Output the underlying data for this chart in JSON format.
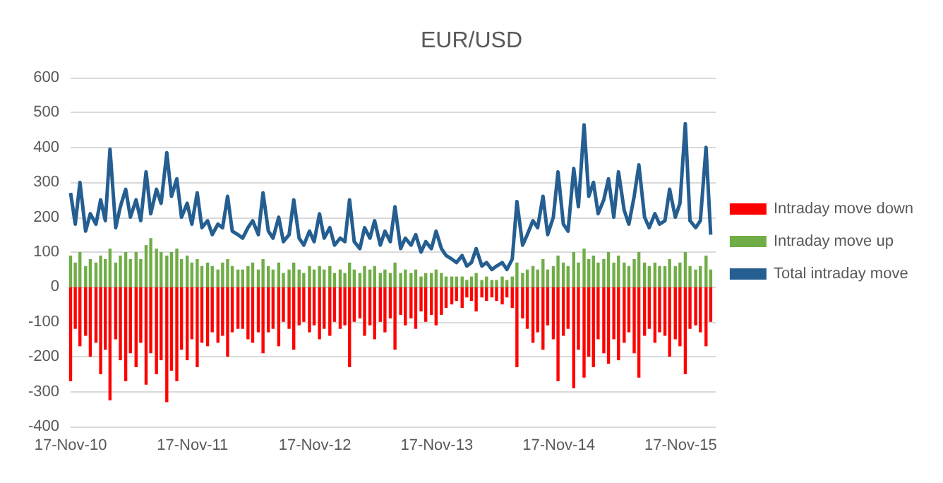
{
  "chart_data": {
    "type": "bar",
    "title": "EUR/USD",
    "stacked": true,
    "legend": "right",
    "grid": "y",
    "marker": "none",
    "x": [
      "2010-11-17",
      "2010-12-01",
      "2010-12-15",
      "2011-01-01",
      "2011-01-15",
      "2011-02-01",
      "2011-02-15",
      "2011-03-01",
      "2011-03-15",
      "2011-04-01",
      "2011-04-15",
      "2011-05-01",
      "2011-05-15",
      "2011-06-01",
      "2011-06-15",
      "2011-07-01",
      "2011-07-15",
      "2011-08-01",
      "2011-08-15",
      "2011-09-01",
      "2011-09-15",
      "2011-10-01",
      "2011-10-15",
      "2011-11-01",
      "2011-11-15",
      "2011-12-01",
      "2011-12-15",
      "2012-01-01",
      "2012-01-15",
      "2012-02-01",
      "2012-02-15",
      "2012-03-01",
      "2012-03-15",
      "2012-04-01",
      "2012-04-15",
      "2012-05-01",
      "2012-05-15",
      "2012-06-01",
      "2012-06-15",
      "2012-07-01",
      "2012-07-15",
      "2012-08-01",
      "2012-08-15",
      "2012-09-01",
      "2012-09-15",
      "2012-10-01",
      "2012-10-15",
      "2012-11-01",
      "2012-11-15",
      "2012-12-01",
      "2012-12-15",
      "2013-01-01",
      "2013-01-15",
      "2013-02-01",
      "2013-02-15",
      "2013-03-01",
      "2013-03-15",
      "2013-04-01",
      "2013-04-15",
      "2013-05-01",
      "2013-05-15",
      "2013-06-01",
      "2013-06-15",
      "2013-07-01",
      "2013-07-15",
      "2013-08-01",
      "2013-08-15",
      "2013-09-01",
      "2013-09-15",
      "2013-10-01",
      "2013-10-15",
      "2013-11-01",
      "2013-11-15",
      "2013-12-01",
      "2013-12-15",
      "2014-01-01",
      "2014-01-15",
      "2014-02-01",
      "2014-02-15",
      "2014-03-01",
      "2014-03-15",
      "2014-04-01",
      "2014-04-15",
      "2014-05-01",
      "2014-05-15",
      "2014-06-01",
      "2014-06-15",
      "2014-07-01",
      "2014-07-15",
      "2014-08-01",
      "2014-08-15",
      "2014-09-01",
      "2014-09-15",
      "2014-10-01",
      "2014-10-15",
      "2014-11-01",
      "2014-11-15",
      "2014-12-01",
      "2014-12-15",
      "2015-01-01",
      "2015-01-15",
      "2015-02-01",
      "2015-02-15",
      "2015-03-01",
      "2015-03-15",
      "2015-04-01",
      "2015-04-15",
      "2015-05-01",
      "2015-05-15",
      "2015-06-01",
      "2015-06-15",
      "2015-07-01",
      "2015-07-15",
      "2015-08-01",
      "2015-08-15",
      "2015-09-01",
      "2015-09-15",
      "2015-10-01",
      "2015-10-15",
      "2015-11-01",
      "2015-11-15",
      "2015-12-01",
      "2015-12-15",
      "2016-01-01",
      "2016-01-15",
      "2016-02-01",
      "2016-02-15"
    ],
    "xlim": [
      "2010-11-17",
      "2016-03-01"
    ],
    "xticks": [
      {
        "value": "2010-11-17",
        "label": "17-Nov-10"
      },
      {
        "value": "2011-11-17",
        "label": "17-Nov-11"
      },
      {
        "value": "2012-11-17",
        "label": "17-Nov-12"
      },
      {
        "value": "2013-11-17",
        "label": "17-Nov-13"
      },
      {
        "value": "2014-11-17",
        "label": "17-Nov-14"
      },
      {
        "value": "2015-11-17",
        "label": "17-Nov-15"
      }
    ],
    "ylim": [
      -400,
      600
    ],
    "yticks": [
      -400,
      -300,
      -200,
      -100,
      0,
      100,
      200,
      300,
      400,
      500,
      600
    ],
    "series": [
      {
        "name": "Intraday move down",
        "color": "#ff0000",
        "values": [
          -270,
          -120,
          -170,
          -140,
          -200,
          -160,
          -250,
          -180,
          -325,
          -150,
          -210,
          -270,
          -190,
          -230,
          -160,
          -280,
          -190,
          -250,
          -210,
          -330,
          -240,
          -270,
          -180,
          -210,
          -150,
          -230,
          -160,
          -170,
          -130,
          -160,
          -140,
          -200,
          -130,
          -120,
          -120,
          -150,
          -160,
          -130,
          -190,
          -130,
          -120,
          -170,
          -100,
          -120,
          -180,
          -110,
          -100,
          -130,
          -110,
          -150,
          -120,
          -140,
          -100,
          -120,
          -110,
          -230,
          -100,
          -90,
          -140,
          -110,
          -150,
          -100,
          -130,
          -90,
          -180,
          -80,
          -110,
          -90,
          -120,
          -70,
          -100,
          -80,
          -110,
          -80,
          -60,
          -50,
          -40,
          -60,
          -30,
          -40,
          -70,
          -30,
          -40,
          -30,
          -40,
          -50,
          -30,
          -60,
          -230,
          -90,
          -120,
          -160,
          -130,
          -180,
          -110,
          -150,
          -270,
          -140,
          -120,
          -290,
          -180,
          -260,
          -200,
          -230,
          -150,
          -190,
          -220,
          -150,
          -210,
          -160,
          -130,
          -190,
          -260,
          -140,
          -120,
          -160,
          -130,
          -140,
          -200,
          -150,
          -170,
          -250,
          -120,
          -110,
          -130,
          -170,
          -100
        ]
      },
      {
        "name": "Intraday move up",
        "color": "#70ad47",
        "values": [
          90,
          70,
          100,
          60,
          80,
          70,
          90,
          80,
          110,
          70,
          90,
          100,
          80,
          100,
          80,
          120,
          140,
          110,
          100,
          90,
          100,
          110,
          80,
          90,
          70,
          80,
          60,
          70,
          60,
          50,
          70,
          80,
          60,
          50,
          50,
          60,
          70,
          50,
          80,
          60,
          50,
          70,
          40,
          50,
          70,
          50,
          40,
          60,
          50,
          60,
          50,
          60,
          40,
          50,
          40,
          70,
          50,
          40,
          60,
          50,
          60,
          40,
          50,
          40,
          70,
          40,
          50,
          40,
          50,
          30,
          40,
          40,
          50,
          40,
          30,
          30,
          30,
          30,
          20,
          30,
          40,
          20,
          30,
          20,
          20,
          30,
          20,
          30,
          70,
          40,
          50,
          60,
          50,
          80,
          50,
          60,
          90,
          70,
          60,
          100,
          70,
          110,
          80,
          90,
          70,
          80,
          100,
          70,
          90,
          70,
          60,
          80,
          100,
          70,
          60,
          70,
          60,
          60,
          80,
          60,
          70,
          100,
          60,
          50,
          60,
          90,
          50
        ]
      },
      {
        "name": "Total intraday move",
        "type": "line",
        "color": "#255e91",
        "values": [
          270,
          180,
          300,
          160,
          210,
          180,
          250,
          190,
          395,
          170,
          230,
          280,
          200,
          250,
          190,
          330,
          210,
          280,
          240,
          385,
          260,
          310,
          200,
          240,
          180,
          270,
          170,
          190,
          150,
          180,
          170,
          260,
          160,
          150,
          140,
          170,
          190,
          150,
          270,
          160,
          140,
          200,
          130,
          150,
          250,
          140,
          120,
          160,
          130,
          210,
          140,
          170,
          120,
          140,
          130,
          250,
          130,
          110,
          170,
          140,
          190,
          120,
          160,
          130,
          230,
          110,
          140,
          120,
          150,
          100,
          130,
          110,
          160,
          110,
          90,
          80,
          70,
          90,
          60,
          70,
          110,
          60,
          70,
          50,
          60,
          70,
          50,
          80,
          245,
          120,
          150,
          190,
          170,
          260,
          150,
          200,
          330,
          180,
          160,
          340,
          230,
          465,
          260,
          300,
          210,
          250,
          310,
          200,
          330,
          220,
          180,
          260,
          350,
          200,
          170,
          210,
          180,
          190,
          280,
          200,
          240,
          468,
          190,
          170,
          190,
          400,
          150
        ]
      }
    ]
  }
}
